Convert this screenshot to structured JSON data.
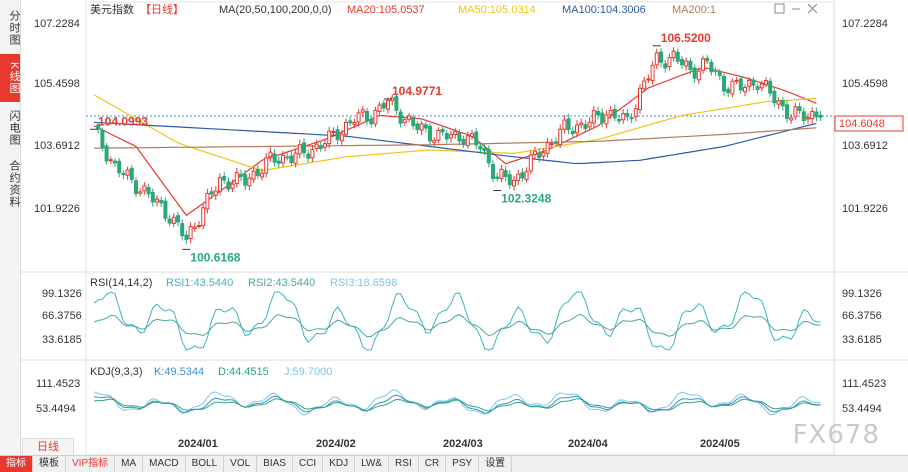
{
  "side_tabs": [
    "分时图",
    "K线图",
    "闪电图",
    "合约资料"
  ],
  "side_active": 1,
  "header": {
    "name": "美元指数",
    "period": "【日线】",
    "ma_label": "MA(20,50,100,200,0,0)",
    "ma20": "MA20:105.0537",
    "ma50": "MA50:105.0314",
    "ma100": "MA100:104.3006",
    "ma200": "MA200:1"
  },
  "rsi_header": {
    "name": "RSI(14,14,2)",
    "rsi1": "RSI1:43.5440",
    "rsi2": "RSI2:43.5440",
    "rsi3": "RSI3:18.6598"
  },
  "kdj_header": {
    "name": "KDJ(9,3,3)",
    "k": "K:49.5344",
    "d": "D:44.4515",
    "j": "J:59.7000"
  },
  "annotations": {
    "high_label": "106.5200",
    "low_label": "100.6168",
    "a1": "104.0993",
    "a2": "104.9771",
    "a3": "102.3248"
  },
  "current_price": "104.6048",
  "period_label": "日线",
  "bottom_bar": [
    "指标",
    "模板",
    "VIP指标",
    "MA",
    "MACD",
    "BOLL",
    "VOL",
    "BIAS",
    "CCI",
    "KDJ",
    "LW&",
    "RSI",
    "CR",
    "PSY",
    "设置"
  ],
  "watermark": "FX678",
  "colors": {
    "up": "#e8392f",
    "down": "#2aa87a",
    "ma20": "#e8392f",
    "ma50": "#f0c419",
    "ma100": "#2f5aa8",
    "ma200": "#b07a5a",
    "rsi_a": "#3bb4c4",
    "rsi_b": "#4aa8a0",
    "kdj_k": "#3c8fd0",
    "kdj_d": "#2aa87a",
    "kdj_j": "#7fc7e3"
  },
  "chart_data": {
    "type": "candlestick",
    "title": "美元指数 日线",
    "x_labels": [
      "2024/01",
      "2024/02",
      "2024/03",
      "2024/04",
      "2024/05"
    ],
    "price_ticks": [
      107.2284,
      105.4598,
      103.6912,
      101.9226
    ],
    "ylim": [
      100.25,
      107.5
    ],
    "rsi_ticks": [
      99.1326,
      66.3756,
      33.6185
    ],
    "kdj_ticks": [
      111.4523,
      53.4494
    ],
    "anchors": [
      {
        "i": 0,
        "v": 104.09
      },
      {
        "i": 5,
        "v": 103.0
      },
      {
        "i": 12,
        "v": 102.3
      },
      {
        "i": 18,
        "v": 101.6
      },
      {
        "i": 22,
        "v": 100.9
      },
      {
        "i": 26,
        "v": 101.8
      },
      {
        "i": 30,
        "v": 102.6
      },
      {
        "i": 36,
        "v": 102.6
      },
      {
        "i": 42,
        "v": 103.2
      },
      {
        "i": 50,
        "v": 103.4
      },
      {
        "i": 56,
        "v": 103.8
      },
      {
        "i": 62,
        "v": 104.4
      },
      {
        "i": 66,
        "v": 104.5
      },
      {
        "i": 70,
        "v": 104.9
      },
      {
        "i": 76,
        "v": 104.2
      },
      {
        "i": 82,
        "v": 103.9
      },
      {
        "i": 88,
        "v": 103.9
      },
      {
        "i": 92,
        "v": 103.6
      },
      {
        "i": 96,
        "v": 102.7
      },
      {
        "i": 100,
        "v": 102.6
      },
      {
        "i": 106,
        "v": 103.4
      },
      {
        "i": 112,
        "v": 104.1
      },
      {
        "i": 118,
        "v": 104.3
      },
      {
        "i": 122,
        "v": 104.6
      },
      {
        "i": 127,
        "v": 104.3
      },
      {
        "i": 130,
        "v": 105.2
      },
      {
        "i": 134,
        "v": 106.1
      },
      {
        "i": 138,
        "v": 106.2
      },
      {
        "i": 142,
        "v": 105.8
      },
      {
        "i": 146,
        "v": 106.0
      },
      {
        "i": 150,
        "v": 105.4
      },
      {
        "i": 154,
        "v": 105.3
      },
      {
        "i": 158,
        "v": 105.5
      },
      {
        "i": 162,
        "v": 105.0
      },
      {
        "i": 166,
        "v": 104.5
      },
      {
        "i": 170,
        "v": 104.5
      },
      {
        "i": 173,
        "v": 104.6
      }
    ],
    "ma": [
      {
        "name": "MA20",
        "points": [
          [
            0,
            104.2
          ],
          [
            10,
            103.6
          ],
          [
            22,
            101.6
          ],
          [
            30,
            102.3
          ],
          [
            40,
            103.2
          ],
          [
            55,
            103.8
          ],
          [
            68,
            104.5
          ],
          [
            78,
            104.4
          ],
          [
            90,
            103.9
          ],
          [
            98,
            103.1
          ],
          [
            108,
            103.5
          ],
          [
            120,
            104.2
          ],
          [
            132,
            105.3
          ],
          [
            145,
            105.9
          ],
          [
            155,
            105.6
          ],
          [
            165,
            105.2
          ],
          [
            173,
            104.8
          ]
        ]
      },
      {
        "name": "MA50",
        "points": [
          [
            0,
            105.1
          ],
          [
            20,
            103.7
          ],
          [
            40,
            102.9
          ],
          [
            60,
            103.3
          ],
          [
            80,
            103.5
          ],
          [
            100,
            103.4
          ],
          [
            120,
            103.8
          ],
          [
            140,
            104.5
          ],
          [
            160,
            104.9
          ],
          [
            173,
            105.0
          ]
        ]
      },
      {
        "name": "MA100",
        "points": [
          [
            0,
            104.3
          ],
          [
            30,
            104.1
          ],
          [
            60,
            103.9
          ],
          [
            80,
            103.6
          ],
          [
            100,
            103.3
          ],
          [
            115,
            103.1
          ],
          [
            130,
            103.2
          ],
          [
            150,
            103.6
          ],
          [
            173,
            104.3
          ]
        ]
      },
      {
        "name": "MA200",
        "points": [
          [
            0,
            103.55
          ],
          [
            40,
            103.6
          ],
          [
            80,
            103.65
          ],
          [
            120,
            103.75
          ],
          [
            150,
            103.95
          ],
          [
            173,
            104.15
          ]
        ]
      }
    ],
    "extremes": [
      {
        "label": "106.5200",
        "i": 134,
        "v": 106.52
      },
      {
        "label": "100.6168",
        "i": 22,
        "v": 100.6168
      },
      {
        "label": "104.0993",
        "i": 0,
        "v": 104.0993
      },
      {
        "label": "104.9771",
        "i": 70,
        "v": 104.9771
      },
      {
        "label": "102.3248",
        "i": 96,
        "v": 102.3248
      }
    ]
  }
}
